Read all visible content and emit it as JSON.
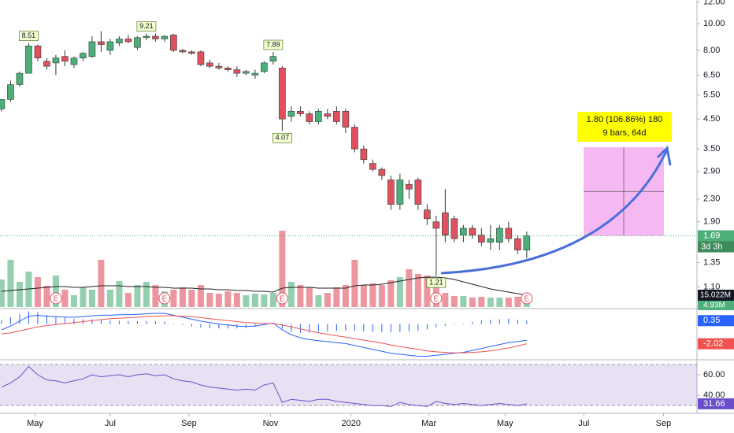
{
  "chart_data": [
    {
      "type": "candlestick",
      "open": [
        4.9,
        5.3,
        6.0,
        6.6,
        8.3,
        7.3,
        7.2,
        7.6,
        7.1,
        7.5,
        7.6,
        8.6,
        8.0,
        8.5,
        8.8,
        8.2,
        8.9,
        9.0,
        8.8,
        9.1,
        8.0,
        7.9,
        7.9,
        7.2,
        7.0,
        6.9,
        6.8,
        6.6,
        6.5,
        6.7,
        7.3,
        6.9,
        4.6,
        4.8,
        4.7,
        4.4,
        4.7,
        4.8,
        4.8,
        4.2,
        3.5,
        3.1,
        2.95,
        2.7,
        2.2,
        2.6,
        2.7,
        2.1,
        1.9,
        2.05,
        1.95,
        1.7,
        1.8,
        1.7,
        1.6,
        1.6,
        1.8,
        1.65,
        1.5
      ],
      "high": [
        5.3,
        6.2,
        6.7,
        8.51,
        8.4,
        7.5,
        7.7,
        8.0,
        7.6,
        7.9,
        9.0,
        9.4,
        8.8,
        9.0,
        9.1,
        9.0,
        9.21,
        9.2,
        9.1,
        9.2,
        8.1,
        8.0,
        8.0,
        7.4,
        7.2,
        7.0,
        7.0,
        6.8,
        6.8,
        7.3,
        7.89,
        7.0,
        5.0,
        5.0,
        4.8,
        4.9,
        4.9,
        5.0,
        4.9,
        4.3,
        3.6,
        3.2,
        3.0,
        2.8,
        2.85,
        2.7,
        2.75,
        2.2,
        2.0,
        2.5,
        2.0,
        1.85,
        1.85,
        1.8,
        1.85,
        1.85,
        1.9,
        1.7,
        1.75
      ],
      "low": [
        4.8,
        5.2,
        5.9,
        6.6,
        7.3,
        6.8,
        6.5,
        7.0,
        6.9,
        7.3,
        7.5,
        7.9,
        7.7,
        8.3,
        8.5,
        8.0,
        8.7,
        8.6,
        8.6,
        7.9,
        7.8,
        7.7,
        7.0,
        6.9,
        6.8,
        6.7,
        6.4,
        6.5,
        6.3,
        6.6,
        7.1,
        4.07,
        4.4,
        4.6,
        4.3,
        4.3,
        4.5,
        4.3,
        4.0,
        3.4,
        3.1,
        2.9,
        2.7,
        2.1,
        2.1,
        2.3,
        2.1,
        1.85,
        1.21,
        1.6,
        1.6,
        1.6,
        1.65,
        1.55,
        1.5,
        1.5,
        1.6,
        1.45,
        1.4
      ],
      "close": [
        5.3,
        6.0,
        6.6,
        8.3,
        7.5,
        7.0,
        7.5,
        7.3,
        7.5,
        7.8,
        8.6,
        8.4,
        8.6,
        8.8,
        8.6,
        8.9,
        9.0,
        8.8,
        9.0,
        8.0,
        7.9,
        7.8,
        7.1,
        7.0,
        6.9,
        6.8,
        6.6,
        6.7,
        6.6,
        7.2,
        7.6,
        4.5,
        4.8,
        4.7,
        4.4,
        4.8,
        4.6,
        4.4,
        4.2,
        3.5,
        3.2,
        2.95,
        2.8,
        2.2,
        2.7,
        2.5,
        2.2,
        1.95,
        1.8,
        1.7,
        1.65,
        1.8,
        1.7,
        1.6,
        1.65,
        1.8,
        1.65,
        1.5,
        1.69
      ],
      "up_color": "#4caf7a",
      "down_color": "#e0505f",
      "log": true,
      "ylim": [
        0.93,
        12.2
      ],
      "yticks": [
        {
          "value": 12,
          "label": "12.00"
        },
        {
          "value": 10,
          "label": "10.00"
        },
        {
          "value": 8,
          "label": "8.00"
        },
        {
          "value": 6.5,
          "label": "6.50"
        },
        {
          "value": 5.5,
          "label": "5.50"
        },
        {
          "value": 4.5,
          "label": "4.50"
        },
        {
          "value": 3.5,
          "label": "3.50"
        },
        {
          "value": 2.9,
          "label": "2.90"
        },
        {
          "value": 2.3,
          "label": "2.30"
        },
        {
          "value": 1.9,
          "label": "1.90"
        },
        {
          "value": 1.35,
          "label": "1.35"
        },
        {
          "value": 1.1,
          "label": "1.10"
        }
      ],
      "xlim": [
        -0.17,
        76.8
      ],
      "xticks": [
        {
          "value": 3.7,
          "label": "May"
        },
        {
          "value": 12.0,
          "label": "Jul"
        },
        {
          "value": 20.7,
          "label": "Sep"
        },
        {
          "value": 29.7,
          "label": "Nov"
        },
        {
          "value": 38.6,
          "label": "2020"
        },
        {
          "value": 47.2,
          "label": "Mar"
        },
        {
          "value": 55.6,
          "label": "May"
        },
        {
          "value": 64.3,
          "label": "Jul"
        },
        {
          "value": 73.1,
          "label": "Sep"
        }
      ],
      "high_labels": [
        3,
        16,
        30
      ],
      "low_labels": [
        31,
        48
      ],
      "countdown": "3d 3h",
      "measure": [
        "1.80 (106.86%) 180",
        "9 bars, 64d"
      ]
    },
    {
      "type": "bar",
      "values": [
        35,
        60,
        32,
        45,
        38,
        27,
        40,
        22,
        15,
        25,
        22,
        60,
        22,
        33,
        18,
        28,
        32,
        28,
        20,
        22,
        25,
        22,
        28,
        18,
        17,
        20,
        18,
        15,
        17,
        16,
        18,
        97,
        32,
        28,
        25,
        15,
        18,
        25,
        28,
        60,
        28,
        30,
        28,
        34,
        38,
        48,
        42,
        40,
        34,
        18,
        14,
        14,
        12,
        13,
        12,
        12,
        12,
        13,
        4.93
      ],
      "value_labels": {
        "58": "4.93M"
      },
      "ma": [
        20,
        21,
        22,
        23,
        24,
        25,
        26,
        26,
        25,
        25,
        26,
        27,
        27,
        27,
        26,
        26,
        26,
        25,
        25,
        24,
        24,
        24,
        23,
        23,
        22,
        22,
        21,
        21,
        20,
        20,
        19,
        24,
        25,
        25,
        25,
        24,
        24,
        24,
        24,
        27,
        28,
        28,
        29,
        31,
        33,
        35,
        37,
        38,
        38,
        37,
        35,
        32,
        29,
        26,
        23,
        21,
        19,
        17,
        15.022
      ],
      "ma_label": "15.022M",
      "ma_color": "#222222",
      "ylim": [
        0,
        100
      ],
      "earnings": [
        6,
        18,
        31,
        48,
        58
      ],
      "earnings_label": "E"
    },
    {
      "type": "line",
      "series": [
        {
          "color": "#2962ff",
          "values": [
            -0.6,
            -0.2,
            0.3,
            0.8,
            0.9,
            0.8,
            0.75,
            0.7,
            0.7,
            0.75,
            0.85,
            0.9,
            0.9,
            0.95,
            0.95,
            1.0,
            1.05,
            1.1,
            1.1,
            0.9,
            0.7,
            0.5,
            0.3,
            0.15,
            0.0,
            -0.1,
            -0.2,
            -0.25,
            -0.2,
            -0.05,
            0.1,
            -0.6,
            -1.1,
            -1.4,
            -1.6,
            -1.7,
            -1.8,
            -1.9,
            -2.0,
            -2.2,
            -2.4,
            -2.6,
            -2.8,
            -3.0,
            -3.1,
            -3.2,
            -3.3,
            -3.3,
            -3.2,
            -3.1,
            -3.0,
            -2.9,
            -2.7,
            -2.5,
            -2.3,
            -2.1,
            -1.9,
            -1.8,
            -1.67
          ]
        },
        {
          "color": "#ef5350",
          "values": [
            -1.0,
            -0.9,
            -0.7,
            -0.5,
            -0.3,
            -0.15,
            -0.05,
            0.05,
            0.15,
            0.25,
            0.35,
            0.45,
            0.55,
            0.6,
            0.65,
            0.7,
            0.75,
            0.8,
            0.85,
            0.85,
            0.8,
            0.75,
            0.65,
            0.55,
            0.45,
            0.35,
            0.25,
            0.15,
            0.1,
            0.05,
            0.05,
            -0.1,
            -0.3,
            -0.5,
            -0.7,
            -0.9,
            -1.05,
            -1.2,
            -1.35,
            -1.5,
            -1.65,
            -1.8,
            -1.95,
            -2.15,
            -2.3,
            -2.45,
            -2.6,
            -2.75,
            -2.85,
            -2.9,
            -2.95,
            -2.95,
            -2.9,
            -2.85,
            -2.75,
            -2.6,
            -2.45,
            -2.25,
            -2.02
          ]
        }
      ],
      "histogram": [
        0.4,
        0.7,
        1.0,
        1.3,
        1.2,
        0.95,
        0.8,
        0.65,
        0.55,
        0.5,
        0.5,
        0.45,
        0.35,
        0.35,
        0.3,
        0.3,
        0.3,
        0.3,
        0.25,
        0.05,
        -0.1,
        -0.25,
        -0.35,
        -0.4,
        -0.45,
        -0.45,
        -0.45,
        -0.4,
        -0.3,
        -0.1,
        0.05,
        -0.5,
        -0.8,
        -0.9,
        -0.9,
        -0.8,
        -0.75,
        -0.7,
        -0.65,
        -0.7,
        -0.75,
        -0.8,
        -0.85,
        -0.85,
        -0.8,
        -0.75,
        -0.7,
        -0.55,
        -0.35,
        -0.2,
        -0.05,
        0.05,
        0.2,
        0.35,
        0.45,
        0.5,
        0.55,
        0.45,
        0.35
      ],
      "histogram_color": "#2962ff",
      "ylim": [
        -3.5,
        1.5
      ]
    },
    {
      "type": "line",
      "values": [
        48,
        52,
        58,
        68,
        60,
        55,
        54,
        52,
        54,
        56,
        60,
        58,
        59,
        60,
        58,
        60,
        61,
        59,
        60,
        56,
        54,
        53,
        50,
        48,
        47,
        46,
        45,
        46,
        45,
        50,
        52,
        33,
        36,
        35,
        34,
        36,
        36,
        34,
        33,
        32,
        31,
        30,
        30,
        29,
        33,
        31,
        30,
        29,
        34,
        32,
        31,
        32,
        31,
        30,
        31,
        32,
        31,
        30,
        31.66
      ],
      "color": "#6a4ec9",
      "band": [
        30,
        70
      ],
      "ylim": [
        26.2,
        72.3
      ],
      "yticks": [
        {
          "value": 60,
          "label": "60.00"
        },
        {
          "value": 40,
          "label": "40.00"
        }
      ]
    }
  ]
}
